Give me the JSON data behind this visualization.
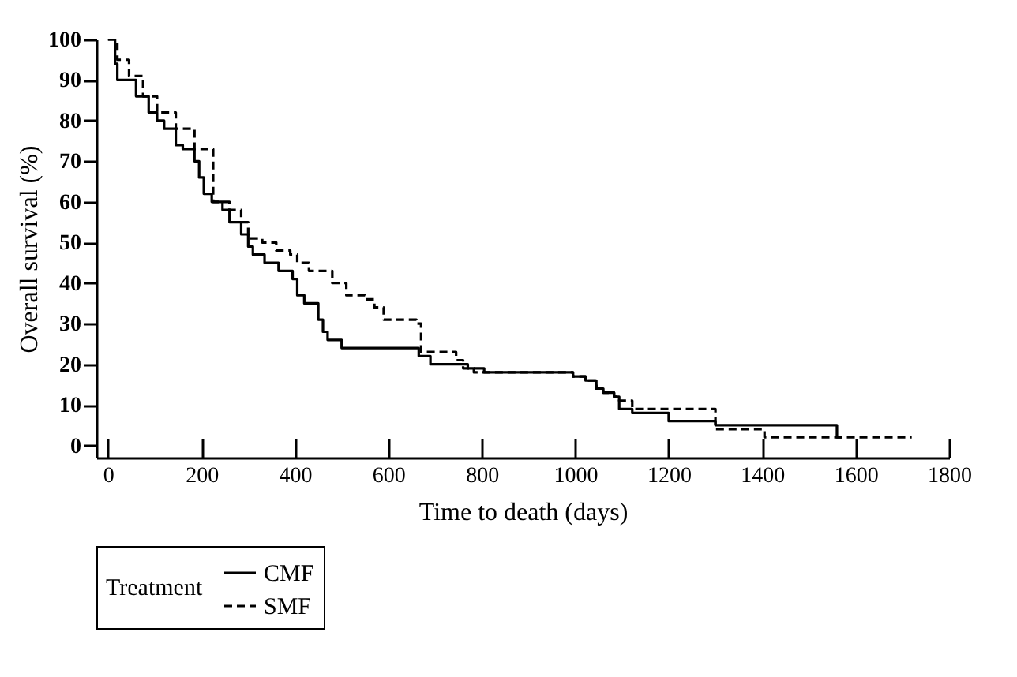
{
  "chart_data": {
    "type": "step",
    "xlabel": "Time to death (days)",
    "ylabel": "Overall survival (%)",
    "legend_title": "Treatment",
    "legend": "bottom",
    "xlim": [
      -25,
      1800
    ],
    "xticks": [
      0,
      200,
      400,
      600,
      800,
      1000,
      1200,
      1400,
      1600,
      1800
    ],
    "ylim": [
      -3,
      100
    ],
    "yticks": [
      0,
      10,
      20,
      30,
      40,
      50,
      60,
      70,
      80,
      90,
      100
    ],
    "series": [
      {
        "name": "CMF",
        "color": "#000000",
        "line_style": "solid",
        "x": [
          0,
          15,
          20,
          60,
          87,
          105,
          120,
          145,
          160,
          185,
          195,
          205,
          222,
          245,
          260,
          285,
          300,
          310,
          335,
          365,
          395,
          405,
          420,
          450,
          460,
          470,
          500,
          530,
          665,
          690,
          710,
          770,
          805,
          995,
          1022,
          1045,
          1060,
          1083,
          1094,
          1122,
          1200,
          1300,
          1555,
          1560,
          1570
        ],
        "values": [
          100,
          94,
          90,
          86,
          82,
          80,
          78,
          74,
          73,
          70,
          66,
          62,
          60,
          58,
          55,
          52,
          49,
          47,
          45,
          43,
          41,
          37,
          35,
          31,
          28,
          26,
          24,
          24,
          22,
          20,
          20,
          19,
          18,
          17,
          16,
          14,
          13,
          12,
          9,
          8,
          6,
          5,
          5,
          2,
          2
        ]
      },
      {
        "name": "SMF",
        "color": "#000000",
        "line_style": "dashed",
        "x": [
          0,
          20,
          45,
          75,
          105,
          145,
          185,
          225,
          260,
          285,
          300,
          330,
          360,
          390,
          405,
          430,
          480,
          510,
          550,
          570,
          590,
          660,
          670,
          745,
          760,
          783,
          995,
          1022,
          1045,
          1060,
          1083,
          1094,
          1122,
          1300,
          1405,
          1720
        ],
        "values": [
          100,
          95,
          91,
          86,
          82,
          78,
          73,
          60,
          58,
          55,
          51,
          50,
          48,
          47,
          45,
          43,
          40,
          37,
          36,
          34,
          31,
          30,
          23,
          21,
          19,
          18,
          17,
          16,
          14,
          13,
          12,
          11,
          9,
          4,
          2,
          2
        ]
      }
    ]
  }
}
